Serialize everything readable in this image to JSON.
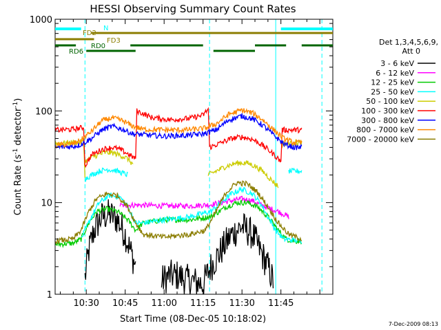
{
  "chart_data": {
    "type": "line",
    "title": "HESSI Observing Summary Count Rates",
    "xlabel": "Start Time (08-Dec-05 10:18:02)",
    "ylabel_main": "Count Rate (s",
    "ylabel_sup1": "-1",
    "ylabel_mid": " detector",
    "ylabel_sup2": "-1",
    "ylabel_end": ")",
    "yscale": "log",
    "ylim": [
      1,
      1000
    ],
    "xlim_minutes": [
      18,
      125
    ],
    "x_ticks": [
      {
        "minute": 30,
        "label": "10:30"
      },
      {
        "minute": 45,
        "label": "10:45"
      },
      {
        "minute": 60,
        "label": "11:00"
      },
      {
        "minute": 75,
        "label": "11:15"
      },
      {
        "minute": 90,
        "label": "11:30"
      },
      {
        "minute": 105,
        "label": "11:45"
      }
    ],
    "y_ticks": [
      {
        "value": 1,
        "label": "1"
      },
      {
        "value": 10,
        "label": "10"
      },
      {
        "value": 100,
        "label": "100"
      },
      {
        "value": 1000,
        "label": "1000"
      }
    ],
    "legend_header": [
      "Det 1,3,4,5,6,9,",
      "Att 0"
    ],
    "legend_placement": "right",
    "series": [
      {
        "name": "3 - 6 keV",
        "color": "#000000",
        "segments": [
          [
            [
              29.5,
              1.5
            ],
            [
              31,
              3
            ],
            [
              33,
              5
            ],
            [
              36,
              7
            ],
            [
              39,
              7.5
            ],
            [
              42,
              6.5
            ],
            [
              45,
              4.5
            ],
            [
              47,
              3
            ],
            [
              49,
              2
            ]
          ],
          [
            [
              59,
              1.4
            ],
            [
              62,
              1.6
            ],
            [
              65,
              1.6
            ],
            [
              70,
              1.4
            ],
            [
              75,
              1.3
            ],
            [
              78,
              2
            ],
            [
              82,
              3
            ],
            [
              86,
              4.5
            ],
            [
              90,
              5.5
            ],
            [
              94,
              4.5
            ],
            [
              97,
              3
            ],
            [
              100,
              2
            ],
            [
              102,
              1.4
            ]
          ]
        ]
      },
      {
        "name": "6 - 12 keV",
        "color": "#ff00ff",
        "segments": [
          [
            [
              43,
              9.3
            ],
            [
              50,
              9.4
            ],
            [
              60,
              9.2
            ],
            [
              70,
              9.2
            ],
            [
              78,
              9.5
            ],
            [
              82,
              10
            ],
            [
              86,
              10.5
            ],
            [
              90,
              11
            ],
            [
              94,
              10.5
            ],
            [
              97,
              9.5
            ],
            [
              100,
              8.8
            ],
            [
              104,
              8
            ],
            [
              108,
              7
            ]
          ]
        ]
      },
      {
        "name": "12 - 25 keV",
        "color": "#00cc00",
        "segments": [
          [
            [
              18,
              3.5
            ],
            [
              25,
              3.6
            ],
            [
              28,
              4
            ],
            [
              31,
              6
            ],
            [
              34,
              8
            ],
            [
              38,
              8.5
            ],
            [
              42,
              8
            ],
            [
              46,
              6.5
            ],
            [
              49,
              5
            ],
            [
              52,
              6
            ],
            [
              60,
              6.5
            ],
            [
              70,
              6.5
            ],
            [
              78,
              7
            ],
            [
              84,
              9
            ],
            [
              88,
              10
            ],
            [
              92,
              10
            ],
            [
              96,
              9
            ],
            [
              100,
              7
            ],
            [
              104,
              5
            ],
            [
              107,
              4
            ],
            [
              110,
              3.8
            ],
            [
              113,
              3.8
            ]
          ]
        ]
      },
      {
        "name": "25 - 50 keV",
        "color": "#00ffff",
        "segments": [
          [
            [
              28,
              4
            ],
            [
              32,
              7
            ],
            [
              35,
              10
            ],
            [
              39,
              12
            ],
            [
              43,
              11.5
            ],
            [
              46,
              9
            ],
            [
              49,
              6
            ],
            [
              52,
              6
            ],
            [
              60,
              6.5
            ],
            [
              70,
              7
            ],
            [
              78,
              8
            ],
            [
              82,
              10
            ],
            [
              86,
              12.5
            ],
            [
              90,
              14
            ],
            [
              94,
              12.5
            ],
            [
              97,
              10
            ],
            [
              100,
              7
            ],
            [
              103,
              5
            ],
            [
              106,
              4
            ],
            [
              113,
              3.8
            ]
          ],
          [
            [
              29.5,
              18
            ],
            [
              32,
              20
            ],
            [
              35,
              22
            ],
            [
              38,
              23
            ],
            [
              41,
              22.5
            ],
            [
              44,
              21
            ],
            [
              46,
              20
            ]
          ],
          [
            [
              108,
              22
            ],
            [
              113,
              22
            ]
          ]
        ]
      },
      {
        "name": "50 - 100 keV",
        "color": "#cccc00",
        "segments": [
          [
            [
              18,
              44
            ],
            [
              29,
              46
            ],
            [
              29.5,
              20
            ]
          ],
          [
            [
              29.5,
              28
            ],
            [
              33,
              32
            ],
            [
              37,
              35
            ],
            [
              40,
              35
            ],
            [
              43,
              33
            ],
            [
              46,
              30
            ],
            [
              48,
              26
            ]
          ],
          [
            [
              77,
              20
            ],
            [
              80,
              22
            ],
            [
              84,
              25
            ],
            [
              88,
              27
            ],
            [
              92,
              27
            ],
            [
              95,
              25
            ],
            [
              98,
              22
            ],
            [
              101,
              18
            ],
            [
              104,
              15
            ]
          ],
          [
            [
              105,
              43
            ],
            [
              110,
              45
            ],
            [
              113,
              45
            ]
          ]
        ]
      },
      {
        "name": "100 - 300 keV",
        "color": "#ff0000",
        "segments": [
          [
            [
              18,
              62
            ],
            [
              25,
              63
            ],
            [
              29,
              66
            ],
            [
              29.5,
              25
            ],
            [
              32,
              33
            ],
            [
              36,
              38
            ],
            [
              40,
              40
            ],
            [
              43,
              38
            ],
            [
              46,
              34
            ],
            [
              49,
              30
            ],
            [
              49.5,
              100
            ],
            [
              55,
              85
            ],
            [
              62,
              80
            ],
            [
              70,
              83
            ],
            [
              75,
              90
            ],
            [
              77,
              105
            ],
            [
              77.5,
              40
            ],
            [
              82,
              45
            ],
            [
              86,
              50
            ],
            [
              90,
              52
            ],
            [
              94,
              49
            ],
            [
              97,
              44
            ],
            [
              100,
              38
            ],
            [
              103,
              32
            ],
            [
              105,
              28
            ],
            [
              105.5,
              62
            ],
            [
              113,
              62
            ]
          ]
        ]
      },
      {
        "name": "300 - 800 keV",
        "color": "#0000ff",
        "segments": [
          [
            [
              18,
              40
            ],
            [
              25,
              41
            ],
            [
              28,
              43
            ],
            [
              32,
              50
            ],
            [
              36,
              62
            ],
            [
              40,
              68
            ],
            [
              44,
              63
            ],
            [
              48,
              56
            ],
            [
              52,
              55
            ],
            [
              60,
              53
            ],
            [
              68,
              54
            ],
            [
              75,
              56
            ],
            [
              80,
              62
            ],
            [
              85,
              80
            ],
            [
              90,
              88
            ],
            [
              94,
              82
            ],
            [
              98,
              70
            ],
            [
              102,
              55
            ],
            [
              106,
              44
            ],
            [
              110,
              40
            ],
            [
              113,
              40
            ]
          ]
        ]
      },
      {
        "name": "800 - 7000 keV",
        "color": "#ff8800",
        "segments": [
          [
            [
              18,
              42
            ],
            [
              25,
              44
            ],
            [
              28,
              48
            ],
            [
              32,
              60
            ],
            [
              36,
              78
            ],
            [
              40,
              84
            ],
            [
              44,
              78
            ],
            [
              48,
              68
            ],
            [
              52,
              63
            ],
            [
              60,
              62
            ],
            [
              68,
              62
            ],
            [
              75,
              64
            ],
            [
              80,
              72
            ],
            [
              85,
              92
            ],
            [
              90,
              102
            ],
            [
              94,
              95
            ],
            [
              98,
              80
            ],
            [
              102,
              63
            ],
            [
              106,
              50
            ],
            [
              110,
              45
            ],
            [
              113,
              45
            ]
          ]
        ]
      },
      {
        "name": "7000 - 20000 keV",
        "color": "#8b7d00",
        "segments": [
          [
            [
              18,
              3.8
            ],
            [
              25,
              4
            ],
            [
              28,
              5
            ],
            [
              31,
              8
            ],
            [
              34,
              11
            ],
            [
              38,
              12.5
            ],
            [
              42,
              12
            ],
            [
              46,
              9
            ],
            [
              49,
              6
            ],
            [
              52,
              4.5
            ],
            [
              60,
              4.2
            ],
            [
              70,
              4.5
            ],
            [
              76,
              5
            ],
            [
              80,
              8
            ],
            [
              84,
              13
            ],
            [
              88,
              16.5
            ],
            [
              92,
              16
            ],
            [
              96,
              13
            ],
            [
              100,
              9
            ],
            [
              104,
              6
            ],
            [
              108,
              4.5
            ],
            [
              113,
              4
            ]
          ]
        ]
      }
    ],
    "flags": [
      {
        "name": "N",
        "color": "#00ffff",
        "segments": [
          [
            18,
            28
          ],
          [
            105,
            125
          ]
        ]
      },
      {
        "name": "FD2",
        "color": "#8b7d00",
        "segments": [
          [
            32,
            125
          ]
        ]
      },
      {
        "name": "FD3",
        "color": "#8b7d00",
        "segments": [
          [
            18,
            33
          ]
        ]
      },
      {
        "name": "RD0",
        "color": "#006400",
        "segments": [
          [
            18,
            26
          ],
          [
            47,
            75
          ],
          [
            95,
            107
          ],
          [
            113,
            125
          ]
        ]
      },
      {
        "name": "RD6",
        "color": "#006400",
        "segments": [
          [
            30,
            49
          ],
          [
            79,
            95
          ]
        ]
      }
    ],
    "vlines_solid_min": [
      18,
      103
    ],
    "vlines_dashed_min": [
      29.5,
      77.5,
      120.8
    ],
    "footer": "7-Dec-2009 08:13"
  }
}
